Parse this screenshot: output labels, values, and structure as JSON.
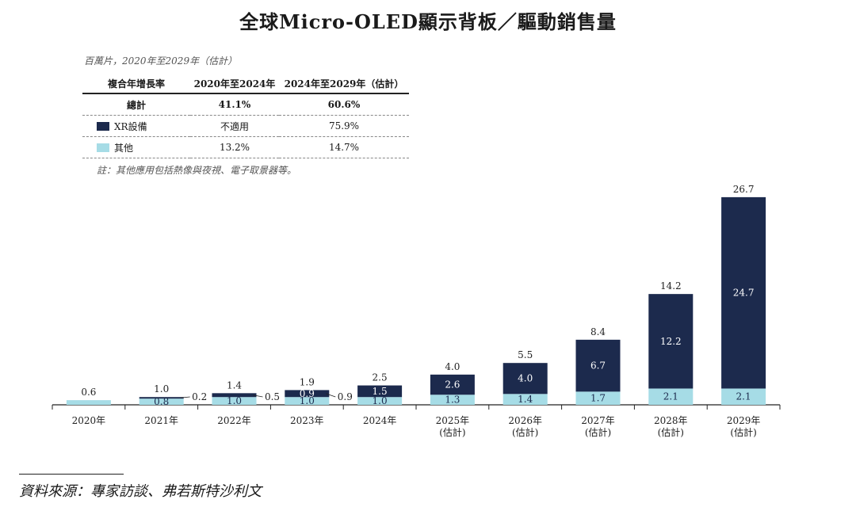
{
  "title": "全球Micro-OLED顯示背板／驅動銷售量",
  "unit_note": "百萬片，2020年至2029年（估計）",
  "cagr_table": {
    "headers": [
      "複合年增長率",
      "2020年至2024年",
      "2024年至2029年（估計）"
    ],
    "rows": [
      {
        "label": "總計",
        "a": "41.1%",
        "b": "60.6%"
      },
      {
        "label": "XR設備",
        "a": "不適用",
        "b": "75.9%"
      },
      {
        "label": "其他",
        "a": "13.2%",
        "b": "14.7%"
      }
    ]
  },
  "footnote": "註：其他應用包括熱像與夜視、電子取景器等。",
  "source": "資料來源：專家訪談、弗若斯特沙利文",
  "colors": {
    "xr": "#1c2a4d",
    "other": "#a6dce6"
  },
  "chart_data": {
    "type": "bar",
    "stacked": true,
    "categories": [
      "2020年",
      "2021年",
      "2022年",
      "2023年",
      "2024年",
      "2025年（估計）",
      "2026年（估計）",
      "2027年（估計）",
      "2028年（估計）",
      "2029年（估計）"
    ],
    "category_lines": [
      [
        "2020年"
      ],
      [
        "2021年"
      ],
      [
        "2022年"
      ],
      [
        "2023年"
      ],
      [
        "2024年"
      ],
      [
        "2025年",
        "(估計)"
      ],
      [
        "2026年",
        "(估計)"
      ],
      [
        "2027年",
        "(估計)"
      ],
      [
        "2028年",
        "(估計)"
      ],
      [
        "2029年",
        "(估計)"
      ]
    ],
    "series": [
      {
        "name": "其他",
        "values": [
          0.6,
          0.8,
          1.0,
          1.0,
          1.0,
          1.3,
          1.4,
          1.7,
          2.1,
          2.1
        ]
      },
      {
        "name": "XR設備",
        "values": [
          0.0,
          0.2,
          0.5,
          0.9,
          1.5,
          2.6,
          4.0,
          6.7,
          12.2,
          24.7
        ]
      }
    ],
    "totals": [
      0.6,
      1.0,
      1.4,
      1.9,
      2.5,
      4.0,
      5.5,
      8.4,
      14.2,
      26.7
    ],
    "other_labels": [
      "",
      "0.8",
      "1.0",
      "1.0",
      "1.0",
      "1.3",
      "1.4",
      "1.7",
      "2.1",
      "2.1"
    ],
    "xr_labels": [
      "",
      "",
      "",
      "0.9",
      "1.5",
      "2.6",
      "4.0",
      "6.7",
      "12.2",
      "24.7"
    ],
    "xr_callouts": [
      "",
      "0.2",
      "0.5",
      "0.9",
      "",
      "",
      "",
      "",
      "",
      ""
    ],
    "total_labels": [
      "0.6",
      "1.0",
      "1.4",
      "1.9",
      "2.5",
      "4.0",
      "5.5",
      "8.4",
      "14.2",
      "26.7"
    ],
    "ylim": [
      0,
      28
    ],
    "legend": [
      "XR設備",
      "其他"
    ]
  }
}
